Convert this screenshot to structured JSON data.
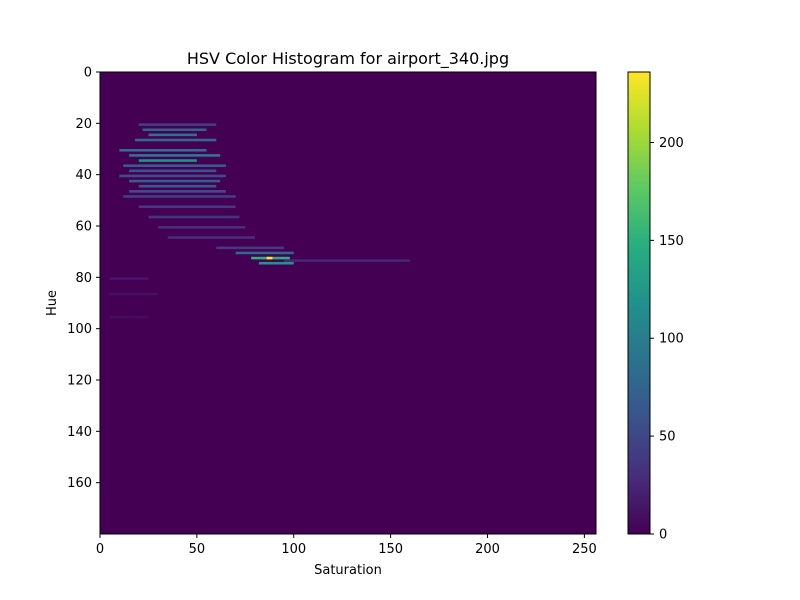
{
  "chart_data": {
    "type": "heatmap",
    "title": "HSV Color Histogram for airport_340.jpg",
    "xlabel": "Saturation",
    "ylabel": "Hue",
    "xlim": [
      0,
      256
    ],
    "ylim": [
      180,
      0
    ],
    "x_ticks": [
      0,
      50,
      100,
      150,
      200,
      250
    ],
    "y_ticks": [
      0,
      20,
      40,
      60,
      80,
      100,
      120,
      140,
      160
    ],
    "colorbar": {
      "range": [
        0,
        236
      ],
      "ticks": [
        0,
        50,
        100,
        150,
        200
      ],
      "colormap": "viridis"
    },
    "background_count": 0,
    "hotspots": [
      {
        "hue": 20,
        "sat_from": 20,
        "sat_to": 60,
        "count": 45
      },
      {
        "hue": 22,
        "sat_from": 22,
        "sat_to": 55,
        "count": 75
      },
      {
        "hue": 24,
        "sat_from": 25,
        "sat_to": 50,
        "count": 90
      },
      {
        "hue": 26,
        "sat_from": 18,
        "sat_to": 60,
        "count": 80
      },
      {
        "hue": 30,
        "sat_from": 10,
        "sat_to": 55,
        "count": 85
      },
      {
        "hue": 32,
        "sat_from": 15,
        "sat_to": 62,
        "count": 95
      },
      {
        "hue": 34,
        "sat_from": 20,
        "sat_to": 50,
        "count": 120
      },
      {
        "hue": 36,
        "sat_from": 12,
        "sat_to": 65,
        "count": 70
      },
      {
        "hue": 38,
        "sat_from": 15,
        "sat_to": 60,
        "count": 60
      },
      {
        "hue": 40,
        "sat_from": 10,
        "sat_to": 65,
        "count": 55
      },
      {
        "hue": 42,
        "sat_from": 15,
        "sat_to": 62,
        "count": 70
      },
      {
        "hue": 44,
        "sat_from": 20,
        "sat_to": 60,
        "count": 65
      },
      {
        "hue": 46,
        "sat_from": 15,
        "sat_to": 65,
        "count": 55
      },
      {
        "hue": 48,
        "sat_from": 12,
        "sat_to": 70,
        "count": 45
      },
      {
        "hue": 52,
        "sat_from": 20,
        "sat_to": 70,
        "count": 40
      },
      {
        "hue": 56,
        "sat_from": 25,
        "sat_to": 72,
        "count": 35
      },
      {
        "hue": 60,
        "sat_from": 30,
        "sat_to": 75,
        "count": 30
      },
      {
        "hue": 64,
        "sat_from": 35,
        "sat_to": 80,
        "count": 30
      },
      {
        "hue": 68,
        "sat_from": 60,
        "sat_to": 95,
        "count": 40
      },
      {
        "hue": 70,
        "sat_from": 70,
        "sat_to": 100,
        "count": 80
      },
      {
        "hue": 72,
        "sat_from": 78,
        "sat_to": 98,
        "count": 150
      },
      {
        "hue": 72,
        "sat_from": 86,
        "sat_to": 89,
        "count": 236
      },
      {
        "hue": 73,
        "sat_from": 95,
        "sat_to": 160,
        "count": 25
      },
      {
        "hue": 74,
        "sat_from": 82,
        "sat_to": 100,
        "count": 120
      },
      {
        "hue": 80,
        "sat_from": 5,
        "sat_to": 25,
        "count": 15
      },
      {
        "hue": 86,
        "sat_from": 5,
        "sat_to": 30,
        "count": 10
      },
      {
        "hue": 95,
        "sat_from": 5,
        "sat_to": 25,
        "count": 8
      }
    ]
  }
}
